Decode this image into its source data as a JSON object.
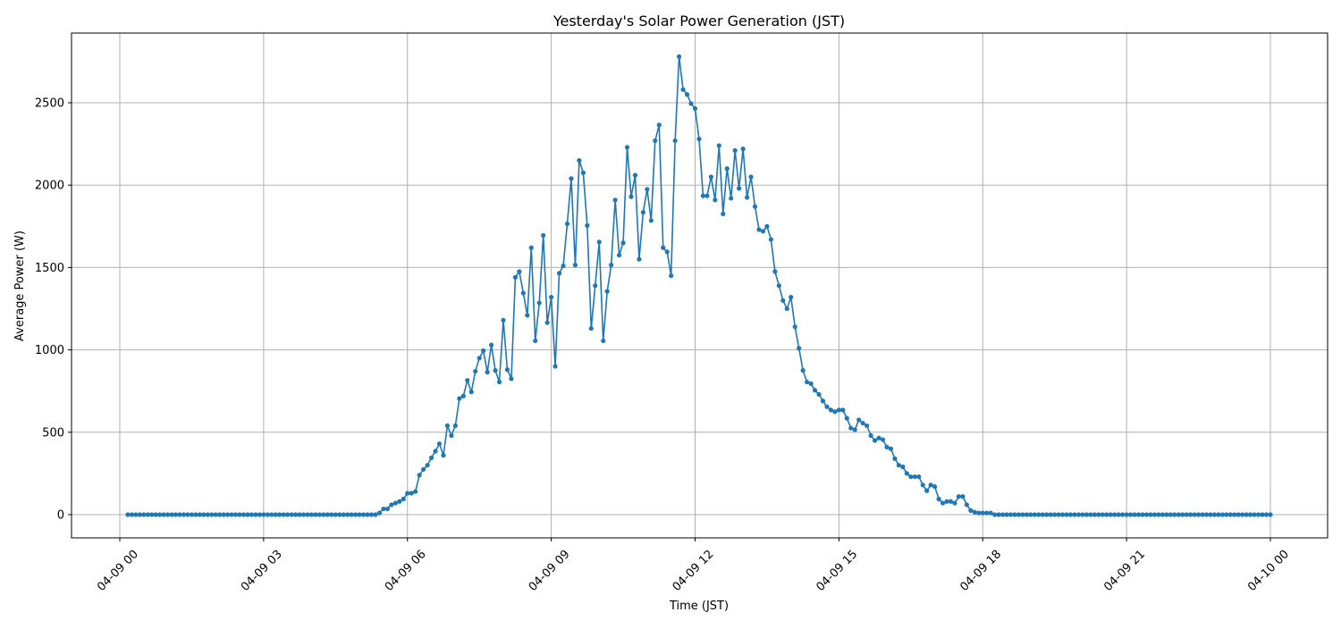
{
  "chart_data": {
    "type": "line",
    "title": "Yesterday's Solar Power Generation (JST)",
    "xlabel": "Time (JST)",
    "ylabel": "Average Power (W)",
    "ylim": [
      -141,
      2923
    ],
    "grid": true,
    "legend": "none",
    "marker": "circle",
    "line_color": "#1f77b4",
    "x_ticks": [
      {
        "label": "04-09 00",
        "hour": 0
      },
      {
        "label": "04-09 03",
        "hour": 3
      },
      {
        "label": "04-09 06",
        "hour": 6
      },
      {
        "label": "04-09 09",
        "hour": 9
      },
      {
        "label": "04-09 12",
        "hour": 12
      },
      {
        "label": "04-09 15",
        "hour": 15
      },
      {
        "label": "04-09 18",
        "hour": 18
      },
      {
        "label": "04-09 21",
        "hour": 21
      },
      {
        "label": "04-10 00",
        "hour": 24
      }
    ],
    "y_ticks": [
      0,
      500,
      1000,
      1500,
      2000,
      2500
    ],
    "x": [
      "04-09 00:10",
      "04-09 00:15",
      "04-09 00:20",
      "04-09 00:25",
      "04-09 00:30",
      "04-09 00:35",
      "04-09 00:40",
      "04-09 00:45",
      "04-09 00:50",
      "04-09 00:55",
      "04-09 01:00",
      "04-09 01:05",
      "04-09 01:10",
      "04-09 01:15",
      "04-09 01:20",
      "04-09 01:25",
      "04-09 01:30",
      "04-09 01:35",
      "04-09 01:40",
      "04-09 01:45",
      "04-09 01:50",
      "04-09 01:55",
      "04-09 02:00",
      "04-09 02:05",
      "04-09 02:10",
      "04-09 02:15",
      "04-09 02:20",
      "04-09 02:25",
      "04-09 02:30",
      "04-09 02:35",
      "04-09 02:40",
      "04-09 02:45",
      "04-09 02:50",
      "04-09 02:55",
      "04-09 03:00",
      "04-09 03:05",
      "04-09 03:10",
      "04-09 03:15",
      "04-09 03:20",
      "04-09 03:25",
      "04-09 03:30",
      "04-09 03:35",
      "04-09 03:40",
      "04-09 03:45",
      "04-09 03:50",
      "04-09 03:55",
      "04-09 04:00",
      "04-09 04:05",
      "04-09 04:10",
      "04-09 04:15",
      "04-09 04:20",
      "04-09 04:25",
      "04-09 04:30",
      "04-09 04:35",
      "04-09 04:40",
      "04-09 04:45",
      "04-09 04:50",
      "04-09 04:55",
      "04-09 05:00",
      "04-09 05:05",
      "04-09 05:10",
      "04-09 05:15",
      "04-09 05:20",
      "04-09 05:25",
      "04-09 05:30",
      "04-09 05:35",
      "04-09 05:40",
      "04-09 05:45",
      "04-09 05:50",
      "04-09 05:55",
      "04-09 06:00",
      "04-09 06:05",
      "04-09 06:10",
      "04-09 06:15",
      "04-09 06:20",
      "04-09 06:25",
      "04-09 06:30",
      "04-09 06:35",
      "04-09 06:40",
      "04-09 06:45",
      "04-09 06:50",
      "04-09 06:55",
      "04-09 07:00",
      "04-09 07:05",
      "04-09 07:10",
      "04-09 07:15",
      "04-09 07:20",
      "04-09 07:25",
      "04-09 07:30",
      "04-09 07:35",
      "04-09 07:40",
      "04-09 07:45",
      "04-09 07:50",
      "04-09 07:55",
      "04-09 08:00",
      "04-09 08:05",
      "04-09 08:10",
      "04-09 08:15",
      "04-09 08:20",
      "04-09 08:25",
      "04-09 08:30",
      "04-09 08:35",
      "04-09 08:40",
      "04-09 08:45",
      "04-09 08:50",
      "04-09 08:55",
      "04-09 09:00",
      "04-09 09:05",
      "04-09 09:10",
      "04-09 09:15",
      "04-09 09:20",
      "04-09 09:25",
      "04-09 09:30",
      "04-09 09:35",
      "04-09 09:40",
      "04-09 09:45",
      "04-09 09:50",
      "04-09 09:55",
      "04-09 10:00",
      "04-09 10:05",
      "04-09 10:10",
      "04-09 10:15",
      "04-09 10:20",
      "04-09 10:25",
      "04-09 10:30",
      "04-09 10:35",
      "04-09 10:40",
      "04-09 10:45",
      "04-09 10:50",
      "04-09 10:55",
      "04-09 11:00",
      "04-09 11:05",
      "04-09 11:10",
      "04-09 11:15",
      "04-09 11:20",
      "04-09 11:25",
      "04-09 11:30",
      "04-09 11:35",
      "04-09 11:40",
      "04-09 11:45",
      "04-09 11:50",
      "04-09 11:55",
      "04-09 12:00",
      "04-09 12:05",
      "04-09 12:10",
      "04-09 12:15",
      "04-09 12:20",
      "04-09 12:25",
      "04-09 12:30",
      "04-09 12:35",
      "04-09 12:40",
      "04-09 12:45",
      "04-09 12:50",
      "04-09 12:55",
      "04-09 13:00",
      "04-09 13:05",
      "04-09 13:10",
      "04-09 13:15",
      "04-09 13:20",
      "04-09 13:25",
      "04-09 13:30",
      "04-09 13:35",
      "04-09 13:40",
      "04-09 13:45",
      "04-09 13:50",
      "04-09 13:55",
      "04-09 14:00",
      "04-09 14:05",
      "04-09 14:10",
      "04-09 14:15",
      "04-09 14:20",
      "04-09 14:25",
      "04-09 14:30",
      "04-09 14:35",
      "04-09 14:40",
      "04-09 14:45",
      "04-09 14:50",
      "04-09 14:55",
      "04-09 15:00",
      "04-09 15:05",
      "04-09 15:10",
      "04-09 15:15",
      "04-09 15:20",
      "04-09 15:25",
      "04-09 15:30",
      "04-09 15:35",
      "04-09 15:40",
      "04-09 15:45",
      "04-09 15:50",
      "04-09 15:55",
      "04-09 16:00",
      "04-09 16:05",
      "04-09 16:10",
      "04-09 16:15",
      "04-09 16:20",
      "04-09 16:25",
      "04-09 16:30",
      "04-09 16:35",
      "04-09 16:40",
      "04-09 16:45",
      "04-09 16:50",
      "04-09 16:55",
      "04-09 17:00",
      "04-09 17:05",
      "04-09 17:10",
      "04-09 17:15",
      "04-09 17:20",
      "04-09 17:25",
      "04-09 17:30",
      "04-09 17:35",
      "04-09 17:40",
      "04-09 17:45",
      "04-09 17:50",
      "04-09 17:55",
      "04-09 18:00",
      "04-09 18:05",
      "04-09 18:10",
      "04-09 18:15",
      "04-09 18:20",
      "04-09 18:25",
      "04-09 18:30",
      "04-09 18:35",
      "04-09 18:40",
      "04-09 18:45",
      "04-09 18:50",
      "04-09 18:55",
      "04-09 19:00",
      "04-09 19:05",
      "04-09 19:10",
      "04-09 19:15",
      "04-09 19:20",
      "04-09 19:25",
      "04-09 19:30",
      "04-09 19:35",
      "04-09 19:40",
      "04-09 19:45",
      "04-09 19:50",
      "04-09 19:55",
      "04-09 20:00",
      "04-09 20:05",
      "04-09 20:10",
      "04-09 20:15",
      "04-09 20:20",
      "04-09 20:25",
      "04-09 20:30",
      "04-09 20:35",
      "04-09 20:40",
      "04-09 20:45",
      "04-09 20:50",
      "04-09 20:55",
      "04-09 21:00",
      "04-09 21:05",
      "04-09 21:10",
      "04-09 21:15",
      "04-09 21:20",
      "04-09 21:25",
      "04-09 21:30",
      "04-09 21:35",
      "04-09 21:40",
      "04-09 21:45",
      "04-09 21:50",
      "04-09 21:55",
      "04-09 22:00",
      "04-09 22:05",
      "04-09 22:10",
      "04-09 22:15",
      "04-09 22:20",
      "04-09 22:25",
      "04-09 22:30",
      "04-09 22:35",
      "04-09 22:40",
      "04-09 22:45",
      "04-09 22:50",
      "04-09 22:55",
      "04-09 23:00",
      "04-09 23:05",
      "04-09 23:10",
      "04-09 23:15",
      "04-09 23:20",
      "04-09 23:25",
      "04-09 23:30",
      "04-09 23:35",
      "04-09 23:40",
      "04-09 23:45",
      "04-09 23:50",
      "04-09 23:55",
      "04-10 00:00"
    ],
    "series": [
      {
        "values": [
          0,
          0,
          0,
          0,
          0,
          0,
          0,
          0,
          0,
          0,
          0,
          0,
          0,
          0,
          0,
          0,
          0,
          0,
          0,
          0,
          0,
          0,
          0,
          0,
          0,
          0,
          0,
          0,
          0,
          0,
          0,
          0,
          0,
          0,
          0,
          0,
          0,
          0,
          0,
          0,
          0,
          0,
          0,
          0,
          0,
          0,
          0,
          0,
          0,
          0,
          0,
          0,
          0,
          0,
          0,
          0,
          0,
          0,
          0,
          0,
          0,
          0,
          0,
          10,
          35,
          35,
          60,
          70,
          80,
          95,
          130,
          130,
          140,
          240,
          275,
          300,
          345,
          385,
          430,
          360,
          540,
          480,
          540,
          705,
          720,
          815,
          745,
          870,
          950,
          995,
          865,
          1030,
          875,
          805,
          1180,
          880,
          825,
          1440,
          1475,
          1345,
          1210,
          1620,
          1055,
          1285,
          1695,
          1165,
          1320,
          900,
          1465,
          1510,
          1765,
          2040,
          1515,
          2150,
          2075,
          1755,
          1130,
          1390,
          1655,
          1055,
          1355,
          1515,
          1910,
          1575,
          1650,
          2230,
          1930,
          2060,
          1550,
          1835,
          1975,
          1785,
          2270,
          2365,
          1620,
          1595,
          1450,
          2270,
          2780,
          2580,
          2550,
          2495,
          2465,
          2280,
          1935,
          1935,
          2050,
          1910,
          2240,
          1825,
          2100,
          1920,
          2210,
          1980,
          2220,
          1925,
          2050,
          1870,
          1730,
          1720,
          1750,
          1670,
          1475,
          1390,
          1300,
          1250,
          1320,
          1140,
          1010,
          875,
          805,
          795,
          755,
          730,
          690,
          655,
          635,
          625,
          635,
          635,
          585,
          525,
          515,
          575,
          555,
          540,
          480,
          450,
          465,
          455,
          410,
          400,
          340,
          300,
          290,
          250,
          230,
          230,
          230,
          180,
          145,
          180,
          170,
          95,
          70,
          80,
          80,
          70,
          110,
          110,
          60,
          25,
          15,
          10,
          10,
          10,
          10,
          0,
          0,
          0,
          0,
          0,
          0,
          0,
          0,
          0,
          0,
          0,
          0,
          0,
          0,
          0,
          0,
          0,
          0,
          0,
          0,
          0,
          0,
          0,
          0,
          0,
          0,
          0,
          0,
          0,
          0,
          0,
          0,
          0,
          0,
          0,
          0,
          0,
          0,
          0,
          0,
          0,
          0,
          0,
          0,
          0,
          0,
          0,
          0,
          0,
          0,
          0,
          0,
          0,
          0,
          0,
          0,
          0,
          0,
          0,
          0,
          0,
          0,
          0,
          0,
          0,
          0,
          0,
          0,
          0,
          0
        ]
      }
    ]
  }
}
